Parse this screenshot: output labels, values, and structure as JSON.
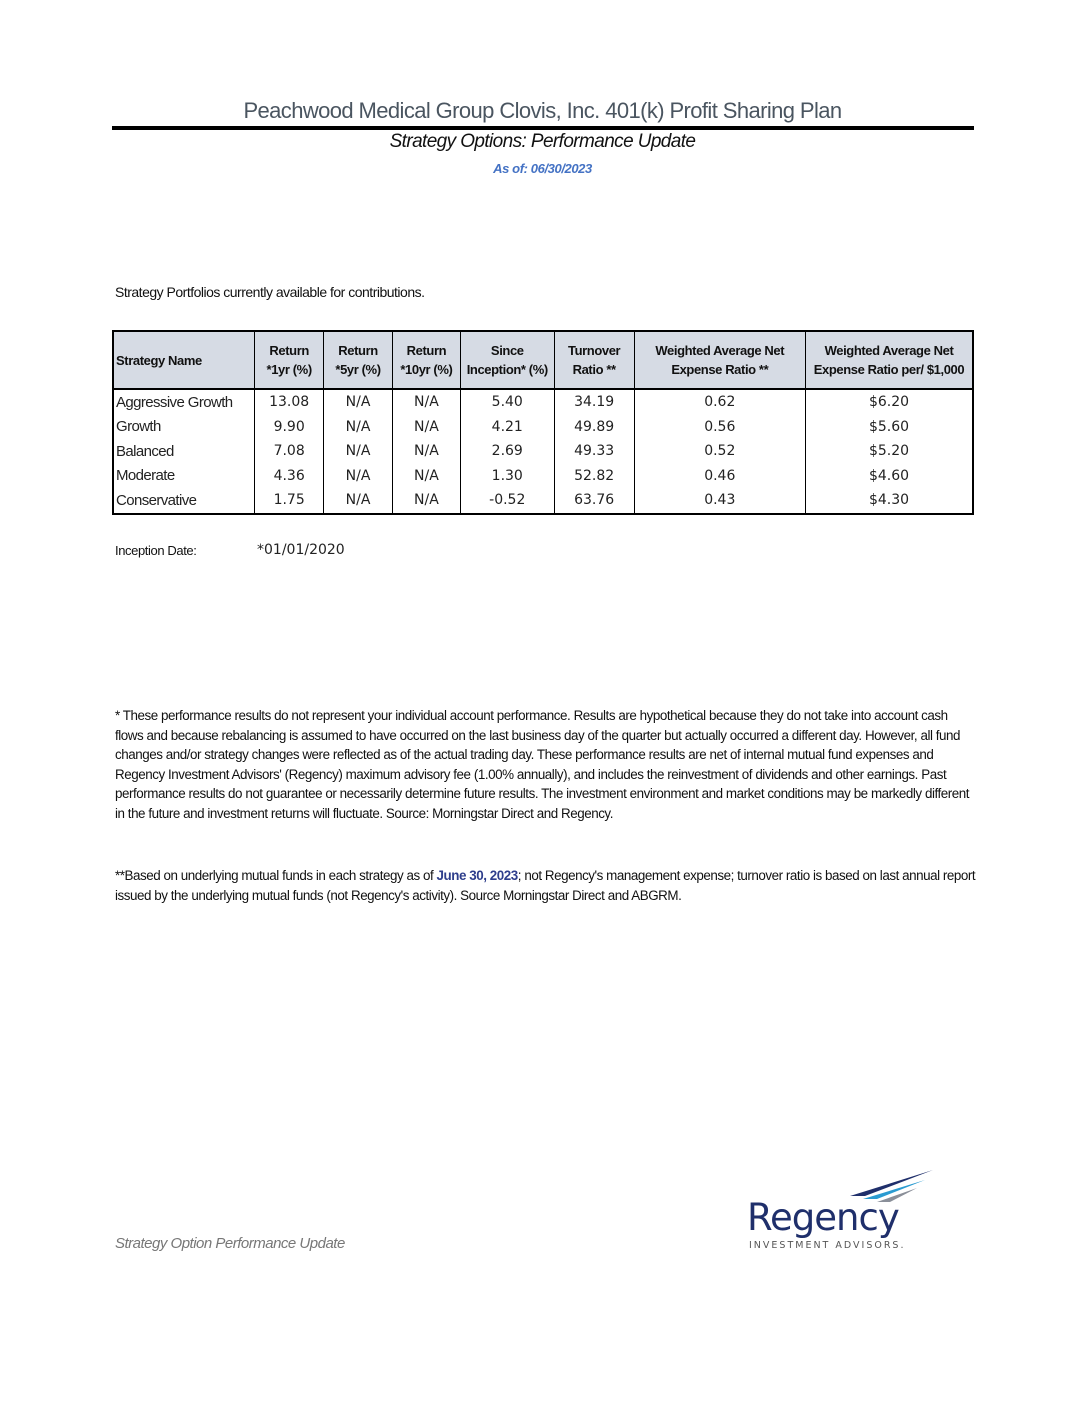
{
  "header": {
    "title": "Peachwood Medical Group Clovis, Inc. 401(k) Profit Sharing Plan",
    "subtitle": "Strategy Options: Performance Update",
    "as_of": "As of: 06/30/2023"
  },
  "intro": "Strategy Portfolios currently available for contributions.",
  "table": {
    "headers": [
      "Strategy Name",
      "Return *1yr (%)",
      "Return *5yr (%)",
      "Return *10yr (%)",
      "Since Inception* (%)",
      "Turnover Ratio **",
      "Weighted Average Net Expense Ratio **",
      "Weighted Average Net Expense Ratio per/ $1,000"
    ],
    "rows": [
      [
        "Aggressive Growth",
        "13.08",
        "N/A",
        "N/A",
        "5.40",
        "34.19",
        "0.62",
        "$6.20"
      ],
      [
        "Growth",
        "9.90",
        "N/A",
        "N/A",
        "4.21",
        "49.89",
        "0.56",
        "$5.60"
      ],
      [
        "Balanced",
        "7.08",
        "N/A",
        "N/A",
        "2.69",
        "49.33",
        "0.52",
        "$5.20"
      ],
      [
        "Moderate",
        "4.36",
        "N/A",
        "N/A",
        "1.30",
        "52.82",
        "0.46",
        "$4.60"
      ],
      [
        "Conservative",
        "1.75",
        "N/A",
        "N/A",
        "-0.52",
        "63.76",
        "0.43",
        "$4.30"
      ]
    ]
  },
  "inception": {
    "label": "Inception Date:",
    "value": "*01/01/2020"
  },
  "notes": {
    "note1": "* These performance results do not represent your individual account performance.  Results are hypothetical because they do not take into account cash flows and because rebalancing is assumed to have occurred on the last business day of the quarter but actually occurred a different day. However, all fund changes and/or strategy changes were reflected as of the actual trading day. These performance results are net of internal mutual fund expenses and Regency Investment Advisors' (Regency) maximum advisory fee (1.00% annually), and includes the reinvestment of dividends and other earnings.  Past performance results do not guarantee or necessarily determine future results.  The investment environment and market conditions may be markedly different in the future and investment returns will fluctuate. Source: Morningstar Direct and Regency.",
    "note2_prefix": "**Based on underlying mutual funds in each strategy as of ",
    "note2_date": "June 30, 2023",
    "note2_suffix": "; not Regency's management expense; turnover ratio is based on last annual report  issued by the underlying mutual funds (not Regency's activity). Source Morningstar Direct and ABGRM."
  },
  "footer": "Strategy Option Performance Update",
  "logo": {
    "name": "Regency",
    "tagline": "INVESTMENT ADVISORS.",
    "color": "#1f2f6b"
  }
}
